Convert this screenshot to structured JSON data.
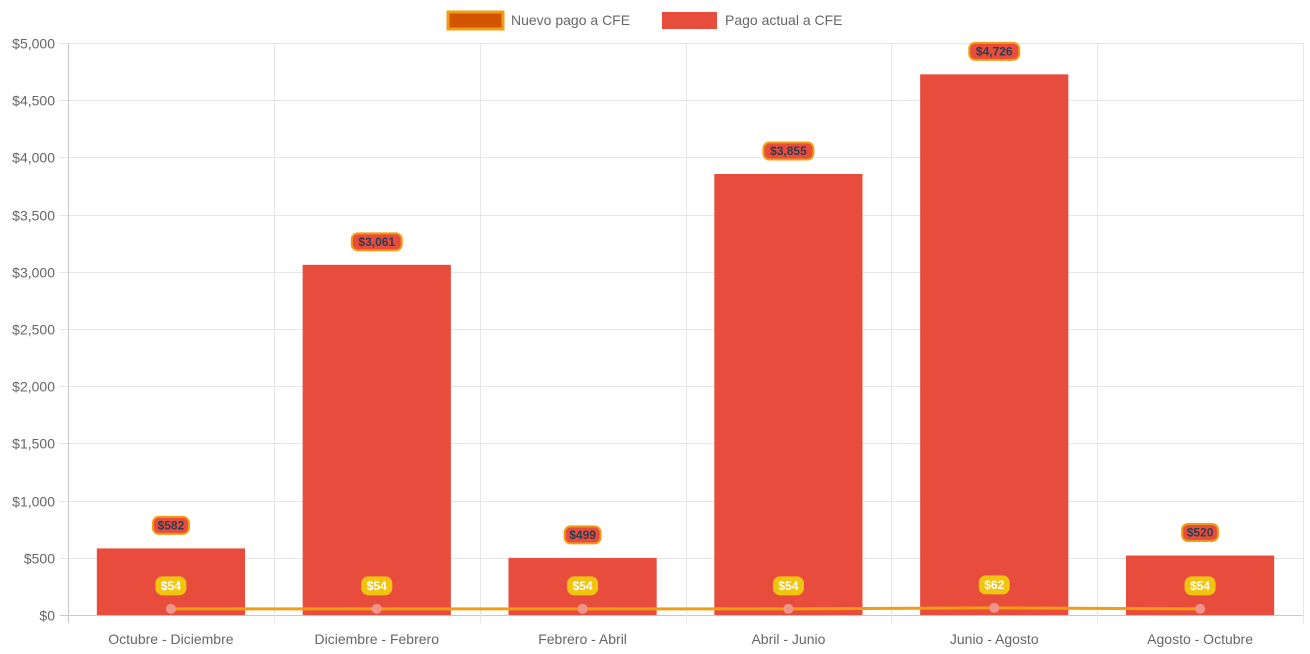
{
  "chart_data": {
    "type": "bar",
    "categories": [
      "Octubre - Diciembre",
      "Diciembre - Febrero",
      "Febrero - Abril",
      "Abril - Junio",
      "Junio - Agosto",
      "Agosto - Octubre"
    ],
    "ylim": [
      0,
      5000
    ],
    "y_ticks": [
      0,
      500,
      1000,
      1500,
      2000,
      2500,
      3000,
      3500,
      4000,
      4500,
      5000
    ],
    "y_tick_labels": [
      "$0",
      "$500",
      "$1,000",
      "$1,500",
      "$2,000",
      "$2,500",
      "$3,000",
      "$3,500",
      "$4,000",
      "$4,500",
      "$5,000"
    ],
    "grid": true,
    "legend_position": "top-center",
    "series": [
      {
        "name": "Nuevo pago a CFE",
        "type": "line",
        "color": "#f39c12",
        "legend_fill": "#d35400",
        "point_color": "#f1948a",
        "label_bg": "#f1c40f",
        "label_color": "#ffffff",
        "values": [
          54,
          54,
          54,
          54,
          62,
          54
        ],
        "labels": [
          "$54",
          "$54",
          "$54",
          "$54",
          "$62",
          "$54"
        ]
      },
      {
        "name": "Pago actual a CFE",
        "type": "bar",
        "color": "#e74c3c",
        "label_border": "#f39c12",
        "label_color": "#2c3e50",
        "values": [
          582,
          3061,
          499,
          3855,
          4726,
          520
        ],
        "labels": [
          "$582",
          "$3,061",
          "$499",
          "$3,855",
          "$4,726",
          "$520"
        ]
      }
    ]
  }
}
